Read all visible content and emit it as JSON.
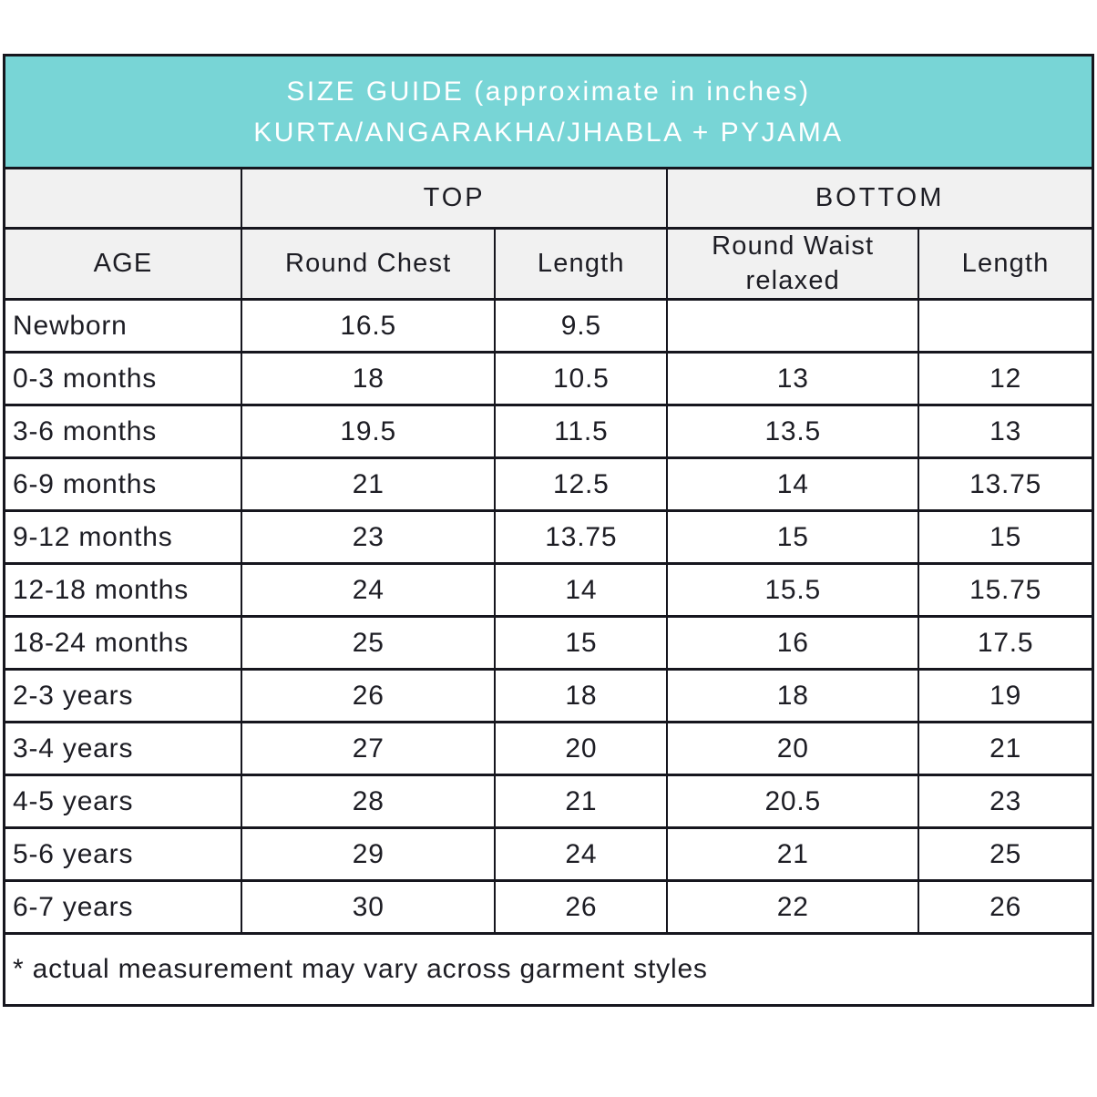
{
  "colors": {
    "header_bg": "#78D5D6",
    "header_text": "#FFFFFF",
    "subheader_bg": "#F1F1F1",
    "border": "#16161E"
  },
  "chart_data": {
    "type": "table",
    "title": "SIZE GUIDE (approximate in inches)",
    "subtitle": "KURTA/ANGARAKHA/JHABLA + PYJAMA",
    "group_headers": [
      {
        "label": "",
        "colspan": 1
      },
      {
        "label": "TOP",
        "colspan": 2
      },
      {
        "label": "BOTTOM",
        "colspan": 2
      }
    ],
    "columns": [
      "AGE",
      "Round Chest",
      "Length",
      "Round Waist relaxed",
      "Length"
    ],
    "rows": [
      [
        "Newborn",
        "16.5",
        "9.5",
        "",
        ""
      ],
      [
        "0-3 months",
        "18",
        "10.5",
        "13",
        "12"
      ],
      [
        "3-6 months",
        "19.5",
        "11.5",
        "13.5",
        "13"
      ],
      [
        "6-9 months",
        "21",
        "12.5",
        "14",
        "13.75"
      ],
      [
        "9-12 months",
        "23",
        "13.75",
        "15",
        "15"
      ],
      [
        "12-18 months",
        "24",
        "14",
        "15.5",
        "15.75"
      ],
      [
        "18-24 months",
        "25",
        "15",
        "16",
        "17.5"
      ],
      [
        "2-3 years",
        "26",
        "18",
        "18",
        "19"
      ],
      [
        "3-4 years",
        "27",
        "20",
        "20",
        "21"
      ],
      [
        "4-5 years",
        "28",
        "21",
        "20.5",
        "23"
      ],
      [
        "5-6 years",
        "29",
        "24",
        "21",
        "25"
      ],
      [
        "6-7 years",
        "30",
        "26",
        "22",
        "26"
      ]
    ],
    "footnote": "* actual measurement may vary across garment styles"
  }
}
